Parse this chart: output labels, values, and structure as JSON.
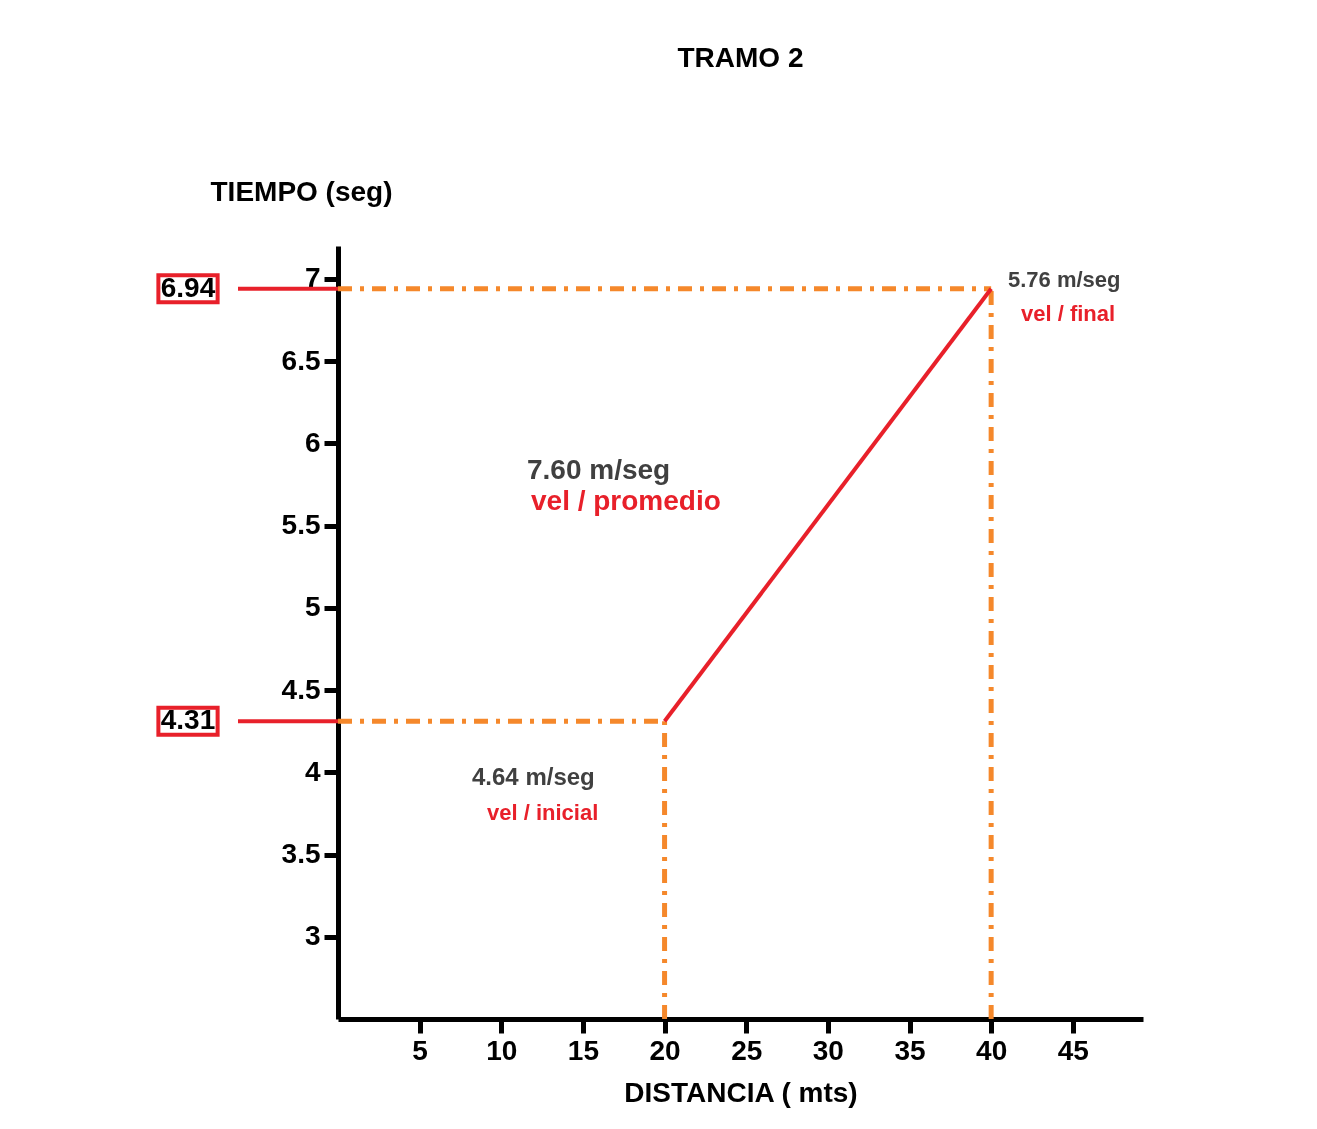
{
  "chart_data": {
    "type": "line",
    "title": "TRAMO 2",
    "xlabel": "DISTANCIA ( mts)",
    "ylabel": "TIEMPO (seg)",
    "xlim": [
      0,
      49.3
    ],
    "ylim": [
      2.5,
      7.2
    ],
    "xticks": [
      5,
      10,
      15,
      20,
      25,
      30,
      35,
      40,
      45
    ],
    "yticks": [
      3,
      3.5,
      4,
      4.5,
      5,
      5.5,
      6,
      6.5,
      7
    ],
    "series": [
      {
        "color": "#e8202a",
        "x": [
          20,
          40
        ],
        "values": [
          4.31,
          6.94
        ]
      }
    ],
    "ref_lines": [
      {
        "axis": "y",
        "value": 6.94,
        "label": "6.94",
        "color": "#f5882b",
        "line_style": "dashed"
      },
      {
        "axis": "y",
        "value": 4.31,
        "label": "4.31",
        "color": "#f5882b",
        "line_style": "dashed"
      },
      {
        "axis": "x",
        "value": 20,
        "color": "#f5882b",
        "line_style": "dashed"
      },
      {
        "axis": "x",
        "value": 40,
        "color": "#f5882b",
        "line_style": "dashed"
      }
    ],
    "annotations": [
      "5.76  m/seg",
      "vel / final",
      "7.60  m/seg",
      "vel / promedio",
      "4.64  m/seg",
      "vel / inicial"
    ],
    "grid": false
  }
}
